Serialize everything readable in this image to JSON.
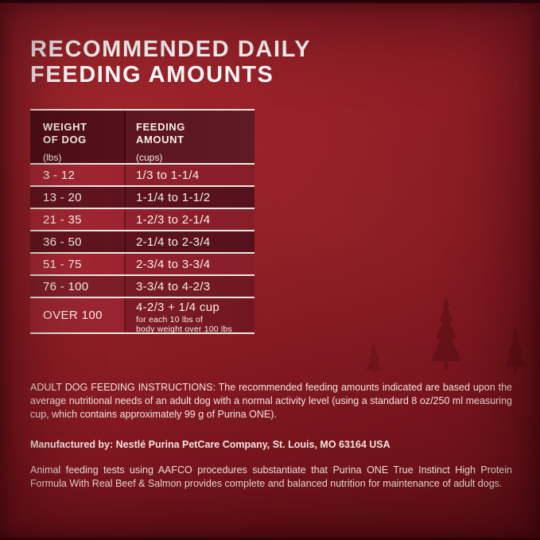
{
  "title": {
    "line1": "RECOMMENDED DAILY",
    "line2": "FEEDING AMOUNTS"
  },
  "table": {
    "columns": [
      {
        "title_lines": [
          "WEIGHT",
          "OF DOG"
        ],
        "unit": "(lbs)"
      },
      {
        "title_lines": [
          "FEEDING",
          "AMOUNT"
        ],
        "unit": "(cups)"
      }
    ],
    "rows": [
      {
        "weight": "3 - 12",
        "amount": "1/3 to 1-1/4"
      },
      {
        "weight": "13 - 20",
        "amount": "1-1/4 to 1-1/2"
      },
      {
        "weight": "21 - 35",
        "amount": "1-2/3 to 2-1/4"
      },
      {
        "weight": "36 - 50",
        "amount": "2-1/4 to 2-3/4"
      },
      {
        "weight": "51 - 75",
        "amount": "2-3/4 to 3-3/4"
      },
      {
        "weight": "76 - 100",
        "amount": "3-3/4 to 4-2/3"
      },
      {
        "weight": "OVER 100",
        "amount": "4-2/3 + 1/4 cup",
        "note_lines": [
          "for each 10 lbs of",
          "body weight over 100 lbs"
        ]
      }
    ]
  },
  "body": {
    "instructions": "ADULT DOG FEEDING INSTRUCTIONS: The recommended feeding amounts indicated are based upon the average nutritional needs of an adult dog with a normal activity level (using a standard 8 oz/250 ml measuring cup, which contains approximately 99 g of Purina ONE).",
    "manufacturer": "Manufactured by: Nestlé Purina PetCare Company, St. Louis, MO 63164 USA",
    "aafco": "Animal feeding tests using AAFCO procedures substantiate that Purina ONE True Instinct High Protein Formula With Real Beef & Salmon provides complete and balanced nutrition for maintenance of adult dogs."
  },
  "colors": {
    "background_red": "#8e1c25",
    "table_header_maroon": "#53101a",
    "row_light_red": "#a22833",
    "row_dark_maroon": "#5e141e",
    "separator_cream": "#f2e8e0",
    "text_cream": "#f5ebe4",
    "title_white": "#ffffff"
  }
}
